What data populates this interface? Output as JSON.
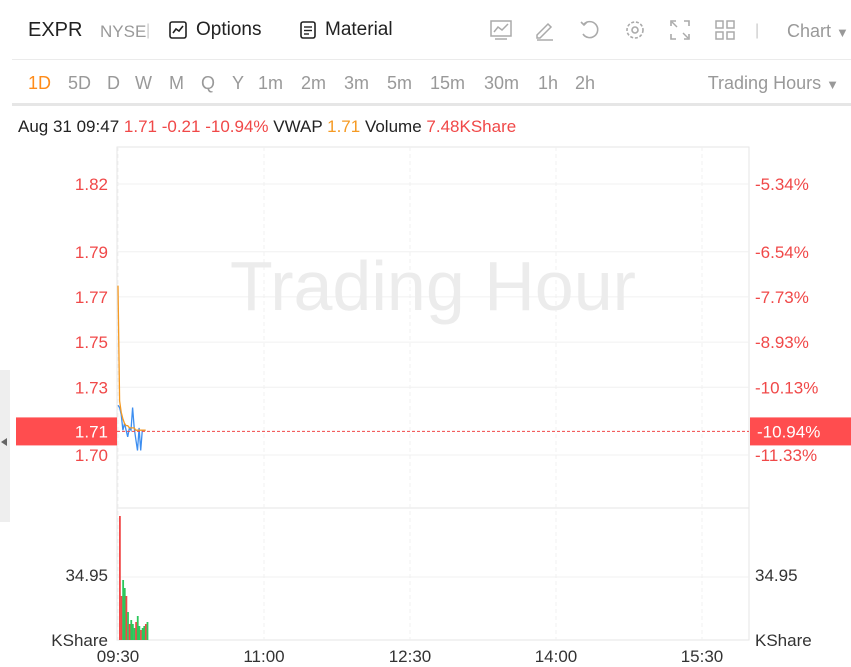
{
  "header": {
    "symbol": "EXPR",
    "exchange": "NYSE",
    "options_label": "Options",
    "material_label": "Material",
    "chart_label": "Chart",
    "toolbar_icons": [
      "line-chart-icon",
      "pencil-icon",
      "refresh-icon",
      "gear-icon",
      "fullscreen-icon",
      "grid-icon"
    ]
  },
  "periods": [
    "1D",
    "5D",
    "D",
    "W",
    "M",
    "Q",
    "Y",
    "1m",
    "2m",
    "3m",
    "5m",
    "15m",
    "30m",
    "1h",
    "2h"
  ],
  "active_period": "1D",
  "trading_hours_label": "Trading Hours",
  "info": {
    "datetime": "Aug 31 09:47",
    "price": "1.71",
    "change": "-0.21",
    "change_pct": "-10.94%",
    "vwap_label": "VWAP",
    "vwap": "1.71",
    "volume_label": "Volume",
    "volume": "7.48KShare"
  },
  "watermark": "Trading Hour",
  "colors": {
    "negative": "#f04848",
    "accent": "#ff8c1a",
    "vwap": "#f59a23",
    "price_line": "#3d8ef0",
    "volume_up": "#2bc75a"
  },
  "chart_data": {
    "type": "line",
    "price_ticks": [
      "1.82",
      "1.79",
      "1.77",
      "1.75",
      "1.73",
      "1.70"
    ],
    "price_values": [
      1.82,
      1.79,
      1.77,
      1.75,
      1.73,
      1.7
    ],
    "pct_ticks": [
      "-5.34%",
      "-6.54%",
      "-7.73%",
      "-8.93%",
      "-10.13%",
      "-11.33%"
    ],
    "current_price": "1.71",
    "current_pct": "-10.94%",
    "x_ticks": [
      "09:30",
      "11:00",
      "12:30",
      "14:00",
      "15:30"
    ],
    "volume_tick": "34.95",
    "volume_unit": "KShare",
    "series": [
      {
        "name": "Price",
        "x": [
          "09:30",
          "09:31",
          "09:32",
          "09:33",
          "09:34",
          "09:35",
          "09:36",
          "09:37",
          "09:38",
          "09:39",
          "09:40",
          "09:41",
          "09:42",
          "09:43",
          "09:44",
          "09:45",
          "09:46",
          "09:47"
        ],
        "values": [
          1.722,
          1.721,
          1.718,
          1.711,
          1.714,
          1.711,
          1.708,
          1.712,
          1.711,
          1.721,
          1.712,
          1.707,
          1.702,
          1.712,
          1.702,
          1.711,
          1.711,
          1.711
        ]
      },
      {
        "name": "VWAP",
        "x": [
          "09:30",
          "09:31",
          "09:32",
          "09:33",
          "09:34",
          "09:35",
          "09:36",
          "09:37",
          "09:38",
          "09:39",
          "09:40",
          "09:41",
          "09:42",
          "09:43",
          "09:44",
          "09:45",
          "09:46",
          "09:47"
        ],
        "values": [
          1.775,
          1.724,
          1.719,
          1.716,
          1.714,
          1.713,
          1.713,
          1.712,
          1.712,
          1.712,
          1.712,
          1.711,
          1.711,
          1.711,
          1.711,
          1.711,
          1.711,
          1.711
        ]
      }
    ],
    "volume": {
      "x": [
        "09:30",
        "09:31",
        "09:32",
        "09:33",
        "09:34",
        "09:35",
        "09:36",
        "09:37",
        "09:38",
        "09:39",
        "09:40",
        "09:41",
        "09:42",
        "09:43",
        "09:44",
        "09:45",
        "09:46",
        "09:47"
      ],
      "values": [
        62,
        22,
        30,
        26,
        22,
        14,
        8,
        10,
        8,
        6,
        9,
        12,
        7,
        5,
        6,
        7,
        8,
        9
      ],
      "direction": [
        "down",
        "down",
        "up",
        "up",
        "down",
        "up",
        "down",
        "up",
        "up",
        "up",
        "down",
        "up",
        "up",
        "down",
        "up",
        "up",
        "down",
        "up"
      ]
    }
  }
}
